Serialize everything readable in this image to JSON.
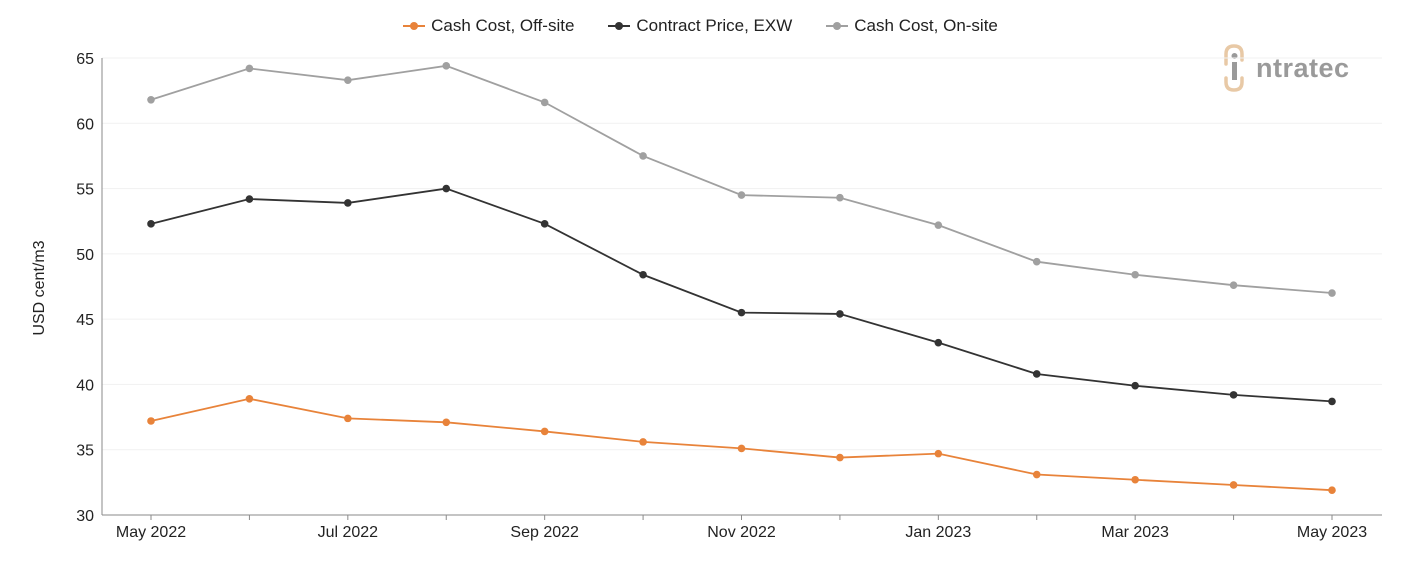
{
  "chart_data": {
    "type": "line",
    "ylabel": "USD cent/m3",
    "ylim": [
      30,
      65
    ],
    "yticks": [
      30,
      35,
      40,
      45,
      50,
      55,
      60,
      65
    ],
    "x": [
      "May 2022",
      "Jun 2022",
      "Jul 2022",
      "Aug 2022",
      "Sep 2022",
      "Oct 2022",
      "Nov 2022",
      "Dec 2022",
      "Jan 2023",
      "Feb 2023",
      "Mar 2023",
      "Apr 2023",
      "May 2023"
    ],
    "xtick_labels": [
      "May 2022",
      "",
      "Jul 2022",
      "",
      "Sep 2022",
      "",
      "Nov 2022",
      "",
      "Jan 2023",
      "",
      "Mar 2023",
      "",
      "May 2023"
    ],
    "grid": "horizontal",
    "legend_position": "top-center",
    "series": [
      {
        "name": "Cash Cost, Off-site",
        "color": "#e8833a",
        "values": [
          37.2,
          38.9,
          37.4,
          37.1,
          36.4,
          35.6,
          35.1,
          34.4,
          34.7,
          33.1,
          32.7,
          32.3,
          31.9
        ]
      },
      {
        "name": "Contract Price, EXW",
        "color": "#333333",
        "values": [
          52.3,
          54.2,
          53.9,
          55.0,
          52.3,
          48.4,
          45.5,
          45.4,
          43.2,
          40.8,
          39.9,
          39.2,
          38.7
        ]
      },
      {
        "name": "Cash Cost, On-site",
        "color": "#a0a0a0",
        "values": [
          61.8,
          64.2,
          63.3,
          64.4,
          61.6,
          57.5,
          54.5,
          54.3,
          52.2,
          49.4,
          48.4,
          47.6,
          47.0
        ]
      }
    ]
  },
  "logo": {
    "text": "ntratec",
    "mark_color": "#e8c9a6",
    "text_color": "#9a9a9a"
  }
}
